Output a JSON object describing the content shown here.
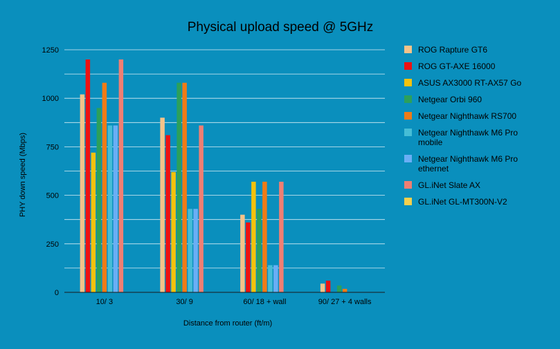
{
  "chart_data": {
    "type": "bar",
    "title": "Physical upload speed @ 5GHz",
    "xlabel": "Distance from router (ft/m)",
    "ylabel": "PHY down speed (Mbps)",
    "ylim": [
      0,
      1250
    ],
    "yticks": [
      0,
      250,
      500,
      750,
      1000,
      1250
    ],
    "categories": [
      "10/ 3",
      "30/ 9",
      "60/ 18 + wall",
      "90/ 27 + 4 walls"
    ],
    "grid": true,
    "legend_position": "right",
    "background_color": "#0a8fbd",
    "series": [
      {
        "name": "ROG Rapture GT6",
        "color": "#f4c38a",
        "values": [
          1020,
          900,
          400,
          45
        ]
      },
      {
        "name": "ROG GT-AXE 16000",
        "color": "#ee1111",
        "values": [
          1200,
          810,
          360,
          60
        ]
      },
      {
        "name": "ASUS AX3000 RT-AX57 Go",
        "color": "#f4c20d",
        "values": [
          720,
          620,
          570,
          0
        ]
      },
      {
        "name": "Netgear Orbi 960",
        "color": "#2ca05a",
        "values": [
          950,
          1080,
          430,
          35
        ]
      },
      {
        "name": "Netgear Nighthawk RS700",
        "color": "#f07b16",
        "values": [
          1080,
          1080,
          570,
          18
        ]
      },
      {
        "name": "Netgear Nighthawk M6 Pro mobile",
        "color": "#46bdd6",
        "values": [
          860,
          430,
          140,
          0
        ]
      },
      {
        "name": "Netgear Nighthawk M6 Pro ethernet",
        "color": "#6aaef5",
        "values": [
          860,
          430,
          140,
          0
        ]
      },
      {
        "name": "GL.iNet Slate AX",
        "color": "#ef7f73",
        "values": [
          1200,
          860,
          570,
          0
        ]
      },
      {
        "name": "GL.iNet GL-MT300N-V2",
        "color": "#f6d04d",
        "values": [
          0,
          0,
          0,
          0
        ]
      }
    ]
  }
}
